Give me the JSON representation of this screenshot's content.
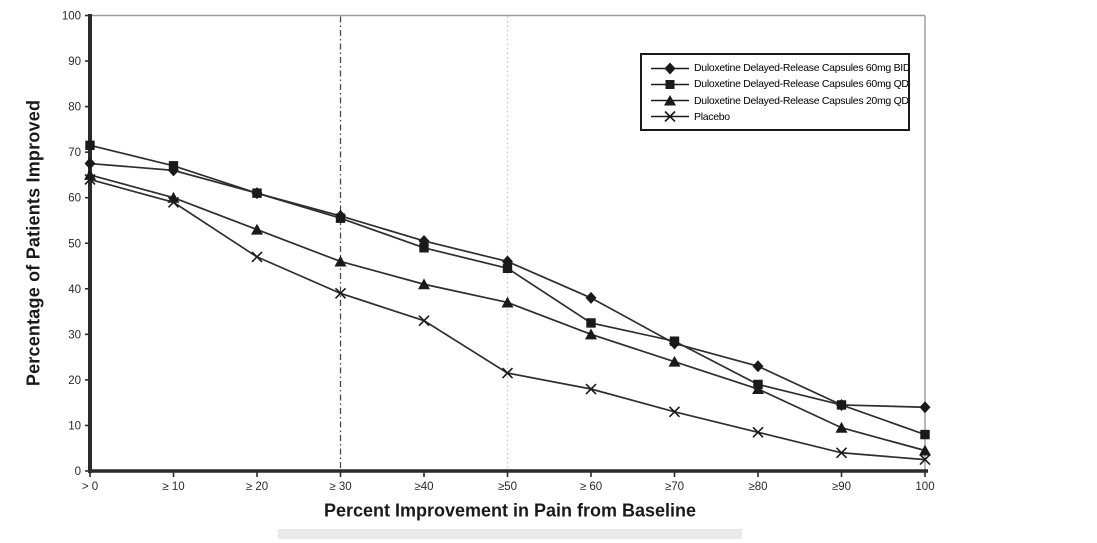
{
  "chart_data": {
    "type": "line",
    "title": "",
    "xlabel": "Percent Improvement in Pain from Baseline",
    "ylabel": "Percentage of Patients Improved",
    "xlim": [
      0,
      100
    ],
    "ylim": [
      0,
      100
    ],
    "x_values": [
      0,
      10,
      20,
      30,
      40,
      50,
      60,
      70,
      80,
      90,
      100
    ],
    "x_tick_labels": [
      "> 0",
      "≥ 10",
      "≥ 20",
      "≥ 30",
      "≥40",
      "≥50",
      "≥ 60",
      "≥70",
      "≥80",
      "≥90",
      "100"
    ],
    "y_tick_labels": [
      "0",
      "10",
      "20",
      "30",
      "40",
      "50",
      "60",
      "70",
      "80",
      "90",
      "100"
    ],
    "grid": "partial-vertical",
    "grid_vertical_lines": [
      {
        "x": 30,
        "style": "dash-dot-dark"
      },
      {
        "x": 50,
        "style": "dotted-light"
      }
    ],
    "legend_position": "top-right-inside",
    "series": [
      {
        "name": "Duloxetine Delayed-Release Capsules 60mg BID",
        "marker": "diamond",
        "values": [
          67.5,
          66,
          61,
          56,
          50.5,
          46,
          38,
          28,
          23,
          14.5,
          14
        ]
      },
      {
        "name": "Duloxetine Delayed-Release Capsules 60mg QD",
        "marker": "square",
        "values": [
          71.5,
          67,
          61,
          55.5,
          49,
          44.5,
          32.5,
          28.5,
          19,
          14.5,
          8
        ]
      },
      {
        "name": "Duloxetine Delayed-Release Capsules 20mg QD",
        "marker": "triangle",
        "values": [
          65,
          60,
          53,
          46,
          41,
          37,
          30,
          24,
          18,
          9.5,
          4.5
        ]
      },
      {
        "name": "Placebo",
        "marker": "x",
        "values": [
          64,
          59,
          47,
          39,
          33,
          21.5,
          18,
          13,
          8.5,
          4,
          2.5
        ]
      }
    ],
    "colors": {
      "line": "#2e2e2e",
      "marker": "#1a1a1a",
      "axis": "#2b2b2b",
      "frame": "#9a9a9a",
      "tick_text": "#2a2a2a",
      "grid_dark": "#4a4a4a",
      "grid_light": "#c3c3c3"
    }
  }
}
